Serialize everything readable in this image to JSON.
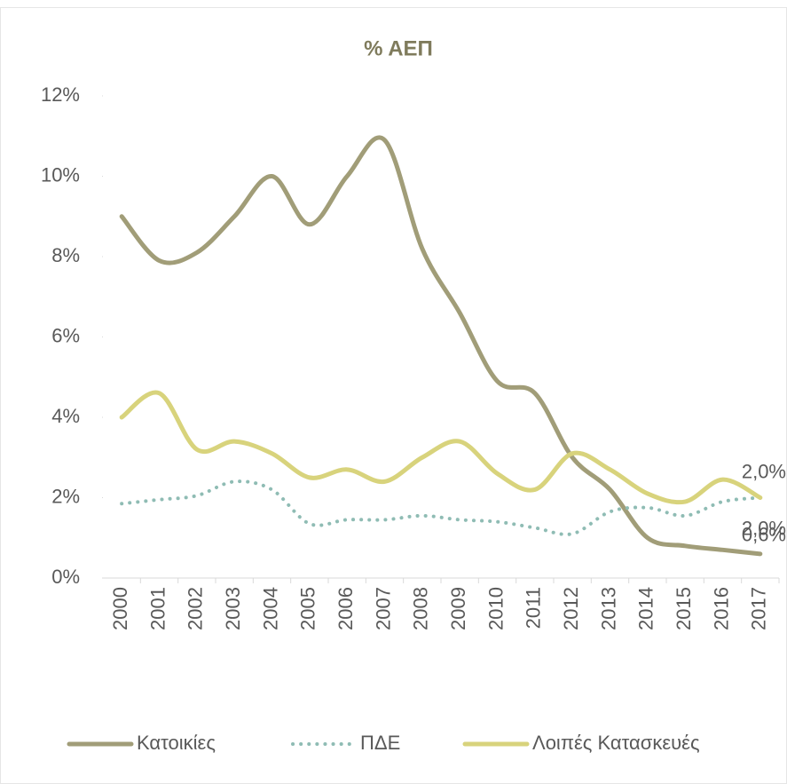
{
  "chart_data": {
    "type": "line",
    "title": "% ΑΕΠ",
    "categories": [
      "2000",
      "2001",
      "2002",
      "2003",
      "2004",
      "2005",
      "2006",
      "2007",
      "2008",
      "2009",
      "2010",
      "2011",
      "2012",
      "2013",
      "2014",
      "2015",
      "2016",
      "2017"
    ],
    "series": [
      {
        "name": "Κατοικίες",
        "color": "#a19d78",
        "dash": "solid",
        "values": [
          9.0,
          7.9,
          8.1,
          9.0,
          10.0,
          8.8,
          10.0,
          10.9,
          8.2,
          6.6,
          4.9,
          4.6,
          3.0,
          2.2,
          1.0,
          0.8,
          0.7,
          0.6
        ],
        "value_labels": [
          null,
          null,
          null,
          null,
          null,
          null,
          null,
          null,
          null,
          null,
          null,
          null,
          null,
          null,
          null,
          null,
          null,
          "0,6%"
        ]
      },
      {
        "name": "ΠΔΕ",
        "color": "#8fbcb4",
        "dash": "dotted",
        "values": [
          1.85,
          1.95,
          2.05,
          2.4,
          2.2,
          1.35,
          1.45,
          1.45,
          1.55,
          1.45,
          1.4,
          1.25,
          1.1,
          1.65,
          1.75,
          1.55,
          1.9,
          2.0
        ],
        "value_labels": [
          null,
          null,
          null,
          null,
          null,
          null,
          null,
          null,
          null,
          null,
          null,
          null,
          null,
          null,
          null,
          null,
          null,
          "2,0%"
        ]
      },
      {
        "name": "Λοιπές Κατασκευές",
        "color": "#d8d37c",
        "dash": "solid",
        "values": [
          4.0,
          4.6,
          3.2,
          3.4,
          3.1,
          2.5,
          2.7,
          2.4,
          3.0,
          3.4,
          2.6,
          2.2,
          3.1,
          2.7,
          2.1,
          1.9,
          2.45,
          2.0
        ],
        "value_labels": [
          null,
          null,
          null,
          null,
          null,
          null,
          null,
          null,
          null,
          null,
          null,
          null,
          null,
          null,
          null,
          null,
          null,
          "2,0%"
        ]
      }
    ],
    "ylim": [
      0,
      12
    ],
    "yticks": [
      {
        "value": 0,
        "label": "0%"
      },
      {
        "value": 2,
        "label": "2%"
      },
      {
        "value": 4,
        "label": "4%"
      },
      {
        "value": 6,
        "label": "6%"
      },
      {
        "value": 8,
        "label": "8%"
      },
      {
        "value": 10,
        "label": "10%"
      },
      {
        "value": 12,
        "label": "12%"
      }
    ],
    "grid": false,
    "legend": "bottom"
  }
}
